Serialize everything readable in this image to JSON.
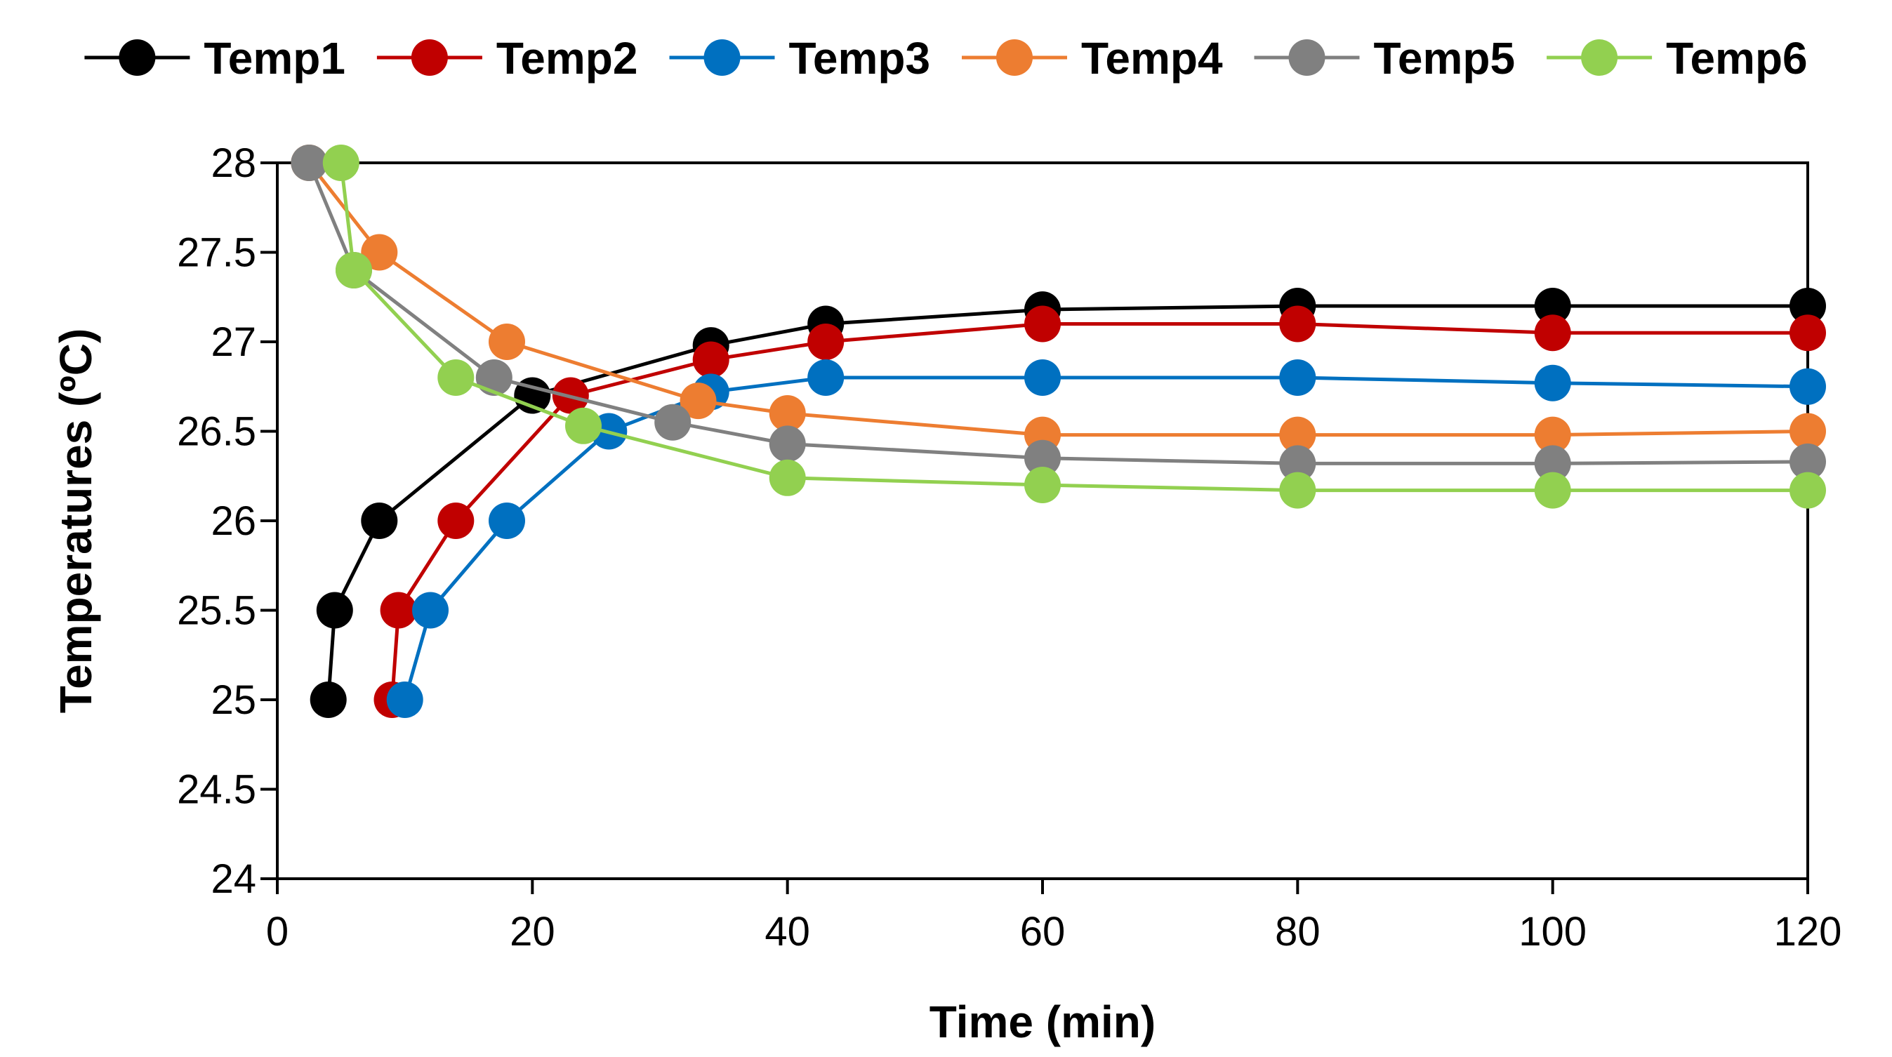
{
  "chart_data": {
    "type": "line",
    "title": "",
    "xlabel": "Time (min)",
    "ylabel": "Temperatures (ºC)",
    "xlim": [
      0,
      120
    ],
    "ylim": [
      24,
      28
    ],
    "xticks": [
      0,
      20,
      40,
      60,
      80,
      100,
      120
    ],
    "yticks": [
      24,
      24.5,
      25,
      25.5,
      26,
      26.5,
      27,
      27.5,
      28
    ],
    "grid": false,
    "legend": "top",
    "series": [
      {
        "name": "Temp1",
        "color": "#000000",
        "points": [
          [
            4,
            25
          ],
          [
            4.5,
            25.5
          ],
          [
            8,
            26
          ],
          [
            20,
            26.7
          ],
          [
            34,
            26.98
          ],
          [
            43,
            27.1
          ],
          [
            60,
            27.18
          ],
          [
            80,
            27.2
          ],
          [
            100,
            27.2
          ],
          [
            120,
            27.2
          ]
        ]
      },
      {
        "name": "Temp2",
        "color": "#c00000",
        "points": [
          [
            9,
            25
          ],
          [
            9.5,
            25.5
          ],
          [
            14,
            26
          ],
          [
            23,
            26.7
          ],
          [
            34,
            26.9
          ],
          [
            43,
            27
          ],
          [
            60,
            27.1
          ],
          [
            80,
            27.1
          ],
          [
            100,
            27.05
          ],
          [
            120,
            27.05
          ]
        ]
      },
      {
        "name": "Temp3",
        "color": "#0070c0",
        "points": [
          [
            10,
            25
          ],
          [
            12,
            25.5
          ],
          [
            18,
            26
          ],
          [
            26,
            26.5
          ],
          [
            34,
            26.72
          ],
          [
            43,
            26.8
          ],
          [
            60,
            26.8
          ],
          [
            80,
            26.8
          ],
          [
            100,
            26.77
          ],
          [
            120,
            26.75
          ]
        ]
      },
      {
        "name": "Temp4",
        "color": "#ed7d31",
        "points": [
          [
            2.5,
            28
          ],
          [
            8,
            27.5
          ],
          [
            18,
            27
          ],
          [
            33,
            26.67
          ],
          [
            40,
            26.6
          ],
          [
            60,
            26.48
          ],
          [
            80,
            26.48
          ],
          [
            100,
            26.48
          ],
          [
            120,
            26.5
          ]
        ]
      },
      {
        "name": "Temp5",
        "color": "#808080",
        "points": [
          [
            2.5,
            28
          ],
          [
            6,
            27.4
          ],
          [
            17,
            26.8
          ],
          [
            31,
            26.55
          ],
          [
            40,
            26.43
          ],
          [
            60,
            26.35
          ],
          [
            80,
            26.32
          ],
          [
            100,
            26.32
          ],
          [
            120,
            26.33
          ]
        ]
      },
      {
        "name": "Temp6",
        "color": "#92d050",
        "points": [
          [
            5,
            28
          ],
          [
            6,
            27.4
          ],
          [
            14,
            26.8
          ],
          [
            24,
            26.53
          ],
          [
            40,
            26.24
          ],
          [
            60,
            26.2
          ],
          [
            80,
            26.17
          ],
          [
            100,
            26.17
          ],
          [
            120,
            26.17
          ]
        ]
      }
    ]
  }
}
